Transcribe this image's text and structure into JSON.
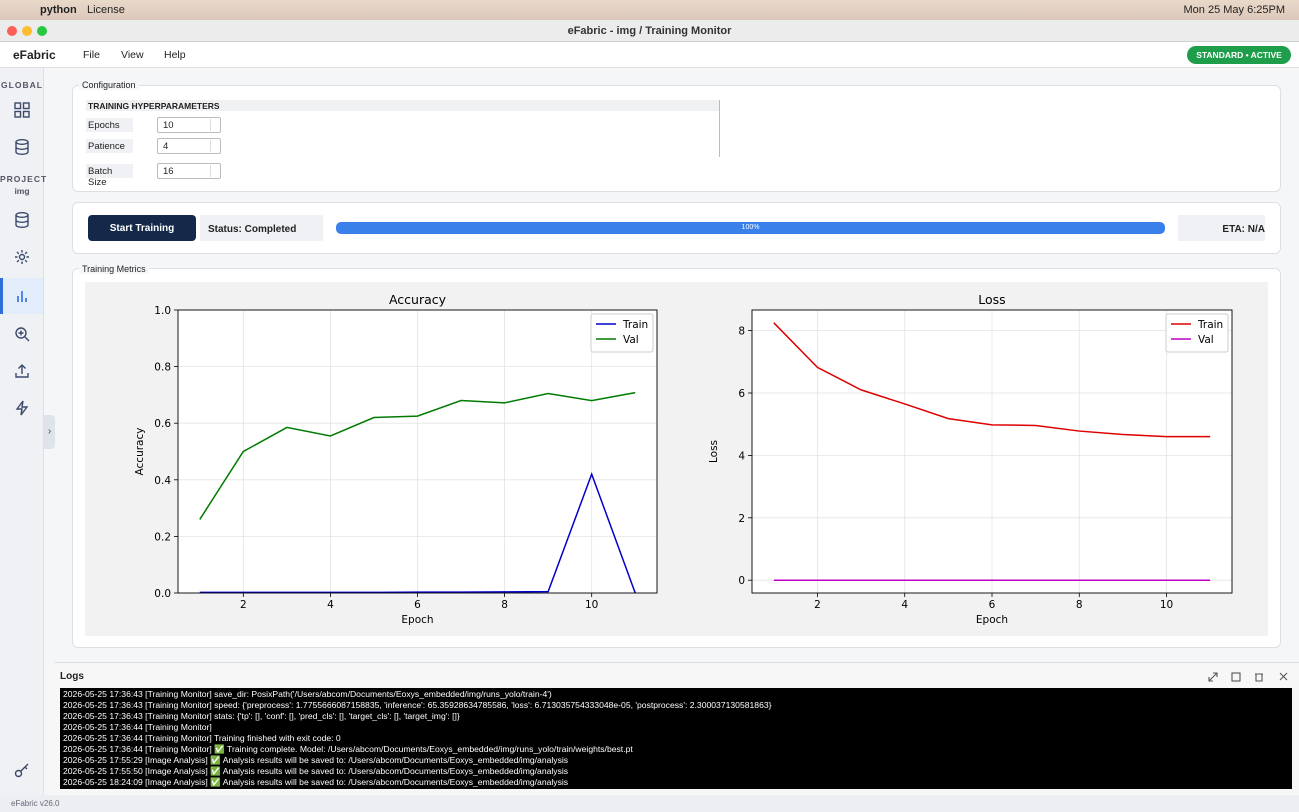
{
  "menubar": {
    "app": "python",
    "menu": "License",
    "datetime": "Mon 25 May 6:25PM"
  },
  "window": {
    "title": "eFabric - img / Training Monitor"
  },
  "app": {
    "name": "eFabric",
    "menus": [
      "File",
      "View",
      "Help"
    ],
    "badge": "STANDARD • ACTIVE",
    "version": "eFabric v26.0"
  },
  "sidebar": {
    "global": "GLOBAL",
    "project": "PROJECT",
    "project_name": "img"
  },
  "configuration": {
    "title": "Configuration",
    "section": "TRAINING HYPERPARAMETERS",
    "fields": [
      {
        "label": "Epochs",
        "value": 10
      },
      {
        "label": "Patience",
        "value": 4
      },
      {
        "label": "Batch Size",
        "value": 16
      }
    ]
  },
  "controls": {
    "button": "Start Training",
    "status": "Status: Completed",
    "progress": {
      "value": 100,
      "label": "100%"
    },
    "eta": "ETA: N/A"
  },
  "metrics": {
    "title": "Training Metrics"
  },
  "chart_data": [
    {
      "type": "line",
      "title": "Accuracy",
      "x_label": "Epoch",
      "y_label": "Accuracy",
      "x": [
        1,
        2,
        3,
        4,
        5,
        6,
        7,
        8,
        9,
        10,
        11
      ],
      "series": [
        {
          "name": "Train",
          "color": "#0000cc",
          "values": [
            0.002,
            0.002,
            0.002,
            0.002,
            0.002,
            0.003,
            0.003,
            0.004,
            0.005,
            0.42,
            0.0
          ]
        },
        {
          "name": "Val",
          "color": "#007a00",
          "values": [
            0.26,
            0.5,
            0.585,
            0.555,
            0.62,
            0.625,
            0.68,
            0.672,
            0.705,
            0.68,
            0.708
          ]
        }
      ],
      "xlim": [
        0.5,
        11.5
      ],
      "xticks": [
        2,
        4,
        6,
        8,
        10
      ],
      "ylim": [
        0,
        1
      ],
      "yticks": [
        {
          "value": 0,
          "label": "0.0"
        },
        0.2,
        0.4,
        0.6,
        0.8,
        {
          "value": 1,
          "label": "1.0"
        }
      ],
      "grid": true,
      "legend": "upper right"
    },
    {
      "type": "line",
      "title": "Loss",
      "x_label": "Epoch",
      "y_label": "Loss",
      "x": [
        1,
        2,
        3,
        4,
        5,
        6,
        7,
        8,
        9,
        10,
        11
      ],
      "series": [
        {
          "name": "Train",
          "color": "#dd0000",
          "values": [
            8.25,
            6.82,
            6.1,
            5.65,
            5.18,
            4.98,
            4.96,
            4.78,
            4.67,
            4.6,
            4.6
          ]
        },
        {
          "name": "Val",
          "color": "#c000c0",
          "values": [
            0,
            0,
            0,
            0,
            0,
            0,
            0,
            0,
            0,
            0,
            0
          ]
        }
      ],
      "xlim": [
        0.5,
        11.5
      ],
      "xticks": [
        2,
        4,
        6,
        8,
        10
      ],
      "ylim": [
        -0.41,
        8.66
      ],
      "yticks": [
        0,
        2,
        4,
        6,
        8
      ],
      "grid": true,
      "legend": "upper right"
    }
  ],
  "logs": {
    "title": "Logs",
    "lines": [
      "2026-05-25 17:36:43 [Training Monitor] save_dir: PosixPath('/Users/abcom/Documents/Eoxys_embedded/img/runs_yolo/train-4')",
      "2026-05-25 17:36:43 [Training Monitor] speed: {'preprocess': 1.7755666087158835, 'inference': 65.35928634785586, 'loss': 6.713035754333048e-05, 'postprocess': 2.300037130581863}",
      "2026-05-25 17:36:43 [Training Monitor] stats: {'tp': [], 'conf': [], 'pred_cls': [], 'target_cls': [], 'target_img': []}",
      "2026-05-25 17:36:44 [Training Monitor]",
      "2026-05-25 17:36:44 [Training Monitor] Training finished with exit code: 0",
      "2026-05-25 17:36:44 [Training Monitor] ✅ Training complete. Model: /Users/abcom/Documents/Eoxys_embedded/img/runs_yolo/train/weights/best.pt",
      "2026-05-25 17:55:29 [Image Analysis] ✅ Analysis results will be saved to: /Users/abcom/Documents/Eoxys_embedded/img/analysis",
      "2026-05-25 17:55:50 [Image Analysis] ✅ Analysis results will be saved to: /Users/abcom/Documents/Eoxys_embedded/img/analysis",
      "2026-05-25 18:24:09 [Image Analysis] ✅ Analysis results will be saved to: /Users/abcom/Documents/Eoxys_embedded/img/analysis"
    ]
  }
}
